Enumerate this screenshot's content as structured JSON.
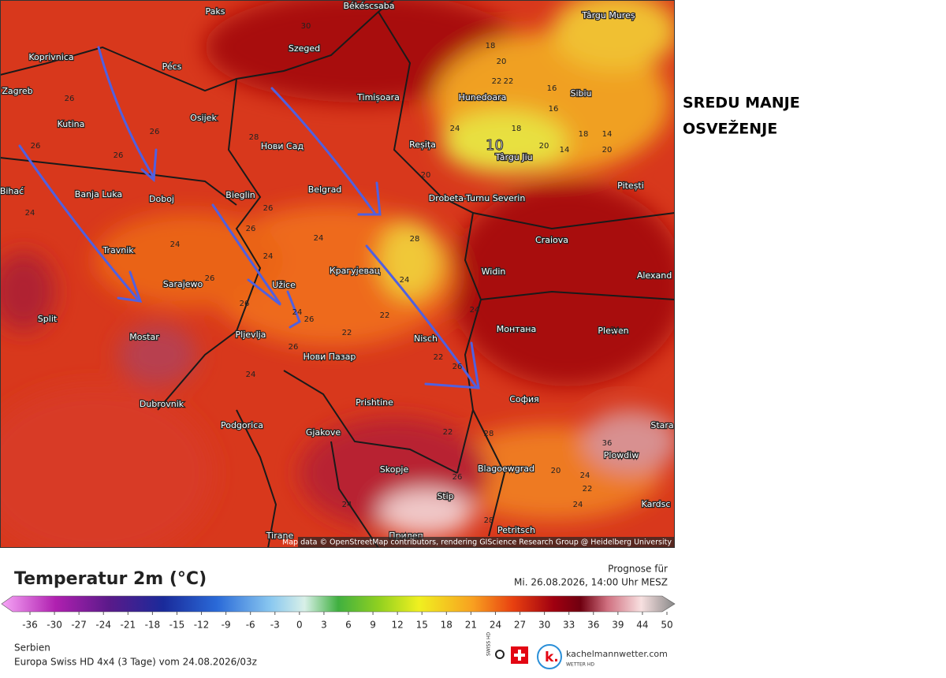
{
  "map": {
    "cities": [
      "Paks",
      "Békéscsaba",
      "Koprivnica",
      "Pécs",
      "Szeged",
      "Târgu Mureș",
      "Zagreb",
      "Osijek",
      "Timișoara",
      "Hunedoara",
      "Sibiu",
      "Kutina",
      "Нови Сад",
      "Reșița",
      "Târgu Jiu",
      "Bihać",
      "Banja Luka",
      "Doboj",
      "Bieglin",
      "Belgrad",
      "Drobeta-Turnu Severin",
      "Pitești",
      "Craiova",
      "Travnik",
      "Sarajewo",
      "Užice",
      "Крагујевац",
      "Widin",
      "Alexand",
      "Split",
      "Mostar",
      "Pljevlja",
      "Nisch",
      "Монтана",
      "Plewen",
      "Нови Пазар",
      "Dubrovnik",
      "Prishtine",
      "София",
      "Podgorica",
      "Gjakove",
      "Stara",
      "Plowdiw",
      "Skopje",
      "Blagoewgrad",
      "Stip",
      "Kardsc",
      "Petritsch",
      "Tirane",
      "Прилеп"
    ],
    "temperatures": [
      30,
      26,
      26,
      26,
      28,
      26,
      18,
      20,
      24,
      22,
      22,
      16,
      16,
      18,
      18,
      14,
      20,
      20,
      14,
      20,
      24,
      24,
      26,
      26,
      28,
      24,
      24,
      24,
      22,
      22,
      24,
      26,
      26,
      24,
      22,
      26,
      24,
      26,
      26,
      22,
      28,
      34,
      36,
      24,
      20,
      22,
      24,
      26,
      28,
      24
    ],
    "highlight": 10,
    "attribution": "Map data © OpenStreetMap contributors, rendering GIScience Research Group @ Heidelberg University"
  },
  "annotation": [
    "SREDU MANJE",
    "OSVEŽENJE"
  ],
  "legend": {
    "title": "Temperatur 2m (°C)",
    "forecast_label": "Prognose für",
    "forecast_time": "Mi. 26.08.2026, 14:00 Uhr MESZ",
    "ticks": [
      -36,
      -30,
      -27,
      -24,
      -21,
      -18,
      -15,
      -12,
      -9,
      -6,
      -3,
      0,
      3,
      6,
      9,
      12,
      15,
      18,
      21,
      24,
      27,
      30,
      33,
      36,
      39,
      44,
      50
    ]
  },
  "footer": {
    "region": "Serbien",
    "model": "Europa Swiss HD 4x4 (3 Tage) vom  24.08.2026/03z",
    "badge": "SWISS HD",
    "site": "kachelmannwetter.com",
    "site_sub": "WETTER HD"
  }
}
